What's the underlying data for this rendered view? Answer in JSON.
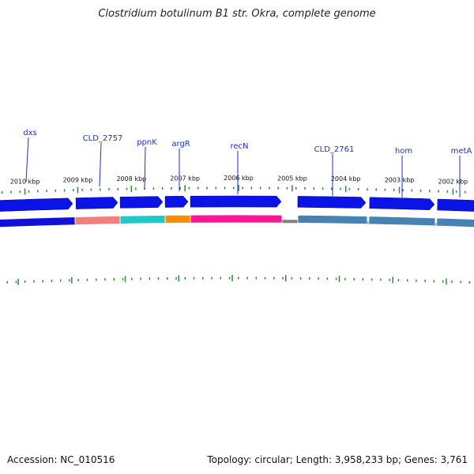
{
  "title": "Clostridium botulinum B1 str. Okra, complete genome",
  "footer": {
    "accession": "Accession: NC_010516",
    "summary": "Topology: circular; Length: 3,958,233 bp; Genes: 3,761"
  },
  "colors": {
    "cds_arrow": "#0a14e6",
    "tick": "#2e8b2e",
    "backbone": "#808080",
    "label": "#1c2fcf"
  },
  "kbp_ticks": [
    {
      "kbp": 2010,
      "label": "2010 kbp"
    },
    {
      "kbp": 2009,
      "label": "2009 kbp"
    },
    {
      "kbp": 2008,
      "label": "2008 kbp"
    },
    {
      "kbp": 2007,
      "label": "2007 kbp"
    },
    {
      "kbp": 2006,
      "label": "2006 kbp"
    },
    {
      "kbp": 2005,
      "label": "2005 kbp"
    },
    {
      "kbp": 2004,
      "label": "2004 kbp"
    },
    {
      "kbp": 2003,
      "label": "2003 kbp"
    },
    {
      "kbp": 2002,
      "label": "2002 kbp"
    }
  ],
  "gene_labels": [
    {
      "name": "dxs"
    },
    {
      "name": "CLD_2757"
    },
    {
      "name": "ppnK"
    },
    {
      "name": "argR"
    },
    {
      "name": "recN"
    },
    {
      "name": "CLD_2761"
    },
    {
      "name": "hom"
    },
    {
      "name": "metA"
    }
  ],
  "feature_blocks": [
    {
      "name": "dxs",
      "color": "#1010d8"
    },
    {
      "name": "CLD_2757",
      "color": "#f08080"
    },
    {
      "name": "ppnK",
      "color": "#20c8c8"
    },
    {
      "name": "argR",
      "color": "#ff8c00"
    },
    {
      "name": "recN",
      "color": "#ff1493"
    },
    {
      "name": "CLD_2761",
      "color": "#4682b4"
    },
    {
      "name": "hom",
      "color": "#4682b4"
    },
    {
      "name": "metA",
      "color": "#4682b4"
    }
  ]
}
